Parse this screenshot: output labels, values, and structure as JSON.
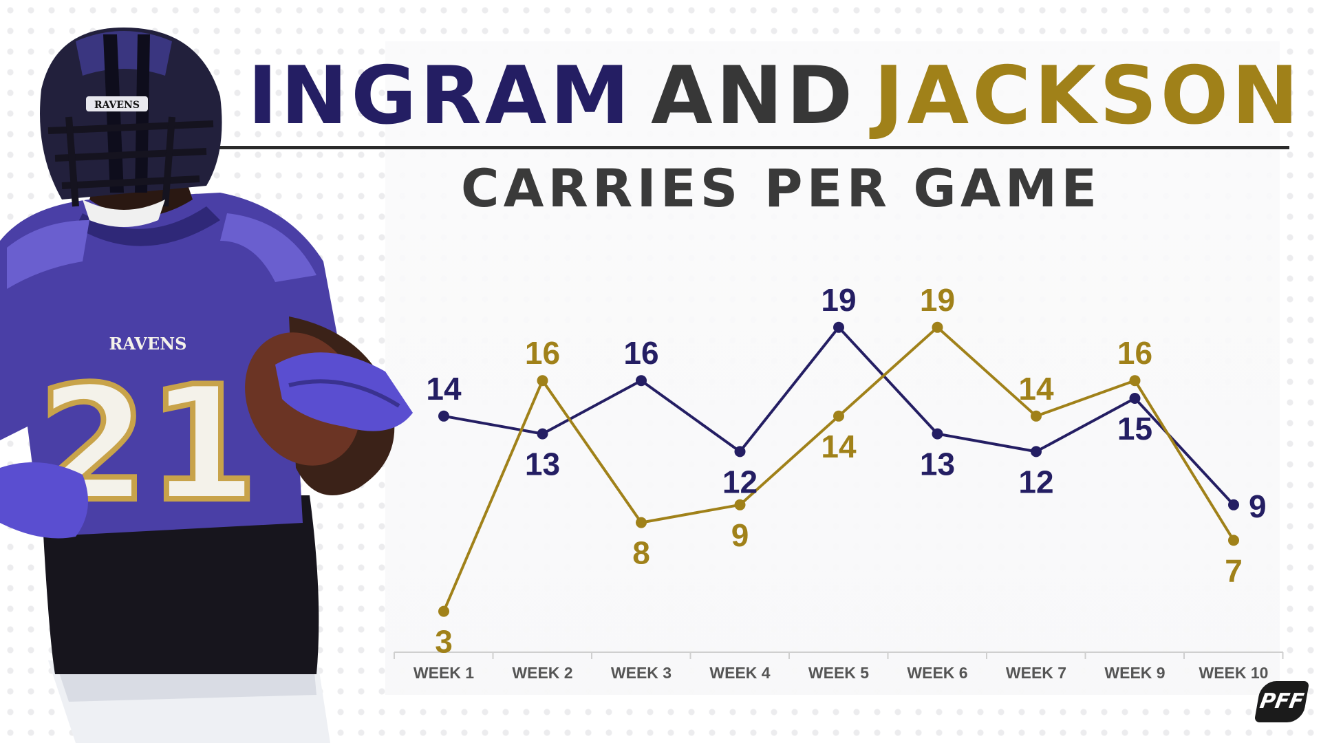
{
  "title": {
    "part1": "INGRAM",
    "part2": "AND",
    "part3": "JACKSON"
  },
  "subtitle": "CARRIES PER GAME",
  "logo": {
    "text": "PFF"
  },
  "player": {
    "jersey_number": "21",
    "team_wordmark": "RAVENS",
    "helmet_text": "RAVENS"
  },
  "colors": {
    "ingram": "#241e63",
    "jackson": "#a08119",
    "title_dark": "#373737",
    "axis": "#cfcfcf"
  },
  "chart_data": {
    "type": "line",
    "title": "CARRIES PER GAME",
    "categories": [
      "WEEK 1",
      "WEEK 2",
      "WEEK 3",
      "WEEK 4",
      "WEEK 5",
      "WEEK 6",
      "WEEK 7",
      "WEEK 9",
      "WEEK 10"
    ],
    "ylim": [
      0,
      22
    ],
    "grid": false,
    "data_labels": true,
    "series": [
      {
        "color": "#241e63",
        "values": [
          14,
          13,
          16,
          12,
          19,
          13,
          12,
          15,
          9
        ]
      },
      {
        "color": "#a08119",
        "values": [
          3,
          16,
          8,
          9,
          14,
          19,
          14,
          16,
          7
        ]
      }
    ]
  }
}
